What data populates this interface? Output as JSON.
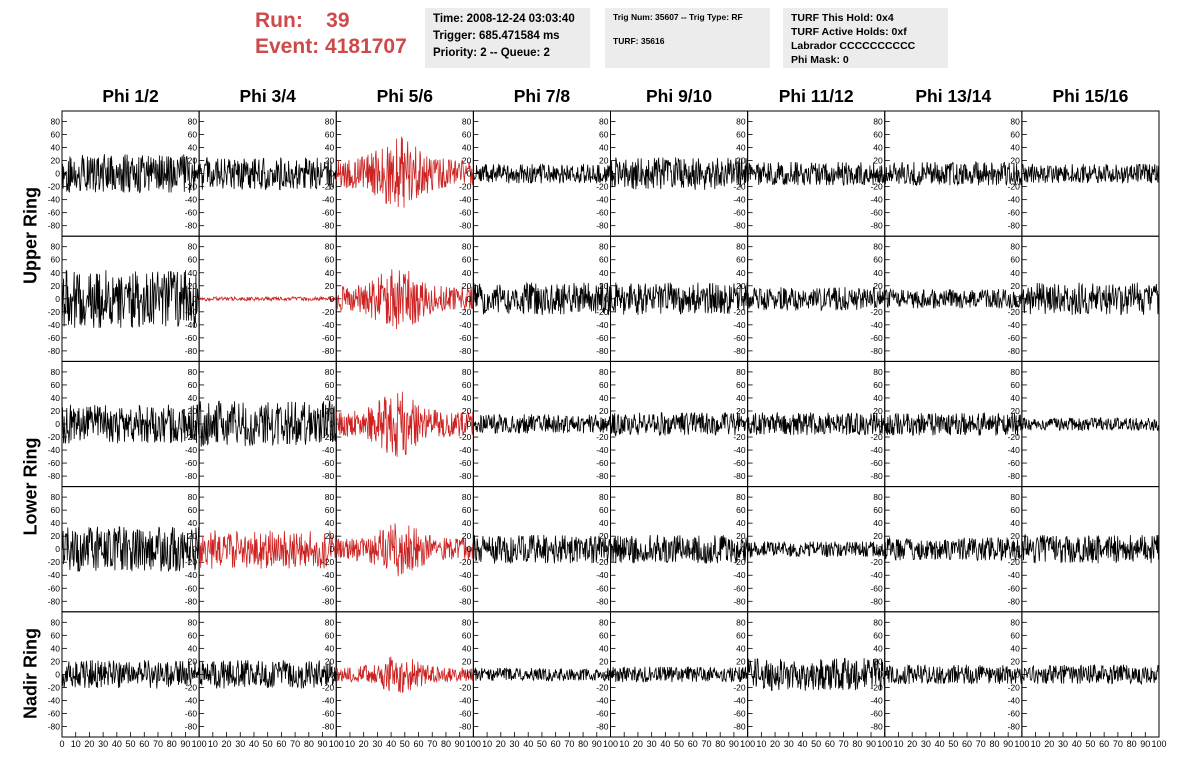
{
  "header": {
    "run_label": "Run:",
    "run_value": "39",
    "event_label": "Event:",
    "event_value": "4181707"
  },
  "info_boxes": [
    {
      "lines": [
        "Time: 2008-12-24 03:03:40",
        "Trigger: 685.471584 ms",
        "Priority: 2 -- Queue: 2"
      ]
    },
    {
      "lines": [
        "Trig Num: 35607 -- Trig Type: RF",
        "",
        "TURF: 35616"
      ]
    },
    {
      "lines": [
        "TURF This Hold: 0x4",
        "TURF Active Holds: 0xf",
        "Labrador CCCCCCCCCC",
        "Phi Mask: 0"
      ]
    }
  ],
  "columns": [
    "Phi 1/2",
    "Phi 3/4",
    "Phi 5/6",
    "Phi 7/8",
    "Phi 9/10",
    "Phi 11/12",
    "Phi 13/14",
    "Phi 15/16"
  ],
  "rows": [
    "Upper Ring",
    "Upper Ring",
    "Lower Ring",
    "Lower Ring",
    "Nadir Ring"
  ],
  "row_labels": [
    "Upper Ring",
    "Lower Ring",
    "Nadir Ring"
  ],
  "colors": {
    "trace": "#000000",
    "highlight": "#cc2222",
    "header_text": "#cd4a4a",
    "info_bg": "#ececec"
  },
  "chart_data": {
    "type": "line",
    "title": "",
    "xlabel": "",
    "ylabel": "",
    "xlim": [
      0,
      100
    ],
    "ylim": [
      -90,
      90
    ],
    "x_ticks": [
      0,
      10,
      20,
      30,
      40,
      50,
      60,
      70,
      80,
      90,
      100
    ],
    "y_ticks": [
      -80,
      -60,
      -40,
      -20,
      0,
      20,
      40,
      60,
      80
    ],
    "grid": false,
    "description_of_panels": "8 x 5 grid of waveform panels; each panel is one antenna trace",
    "panels": [
      {
        "row": 0,
        "col": 0,
        "amplitude": 30,
        "highlight": false
      },
      {
        "row": 0,
        "col": 1,
        "amplitude": 25,
        "highlight": false
      },
      {
        "row": 0,
        "col": 2,
        "amplitude": 40,
        "highlight": true
      },
      {
        "row": 0,
        "col": 3,
        "amplitude": 15,
        "highlight": false
      },
      {
        "row": 0,
        "col": 4,
        "amplitude": 25,
        "highlight": false
      },
      {
        "row": 0,
        "col": 5,
        "amplitude": 18,
        "highlight": false
      },
      {
        "row": 0,
        "col": 6,
        "amplitude": 18,
        "highlight": false
      },
      {
        "row": 0,
        "col": 7,
        "amplitude": 15,
        "highlight": false
      },
      {
        "row": 1,
        "col": 0,
        "amplitude": 45,
        "highlight": false
      },
      {
        "row": 1,
        "col": 1,
        "amplitude": 3,
        "highlight": true
      },
      {
        "row": 1,
        "col": 2,
        "amplitude": 35,
        "highlight": true
      },
      {
        "row": 1,
        "col": 3,
        "amplitude": 25,
        "highlight": false
      },
      {
        "row": 1,
        "col": 4,
        "amplitude": 25,
        "highlight": false
      },
      {
        "row": 1,
        "col": 5,
        "amplitude": 18,
        "highlight": false
      },
      {
        "row": 1,
        "col": 6,
        "amplitude": 15,
        "highlight": false
      },
      {
        "row": 1,
        "col": 7,
        "amplitude": 25,
        "highlight": false
      },
      {
        "row": 2,
        "col": 0,
        "amplitude": 30,
        "highlight": false
      },
      {
        "row": 2,
        "col": 1,
        "amplitude": 35,
        "highlight": false
      },
      {
        "row": 2,
        "col": 2,
        "amplitude": 35,
        "highlight": true
      },
      {
        "row": 2,
        "col": 3,
        "amplitude": 15,
        "highlight": false
      },
      {
        "row": 2,
        "col": 4,
        "amplitude": 18,
        "highlight": false
      },
      {
        "row": 2,
        "col": 5,
        "amplitude": 18,
        "highlight": false
      },
      {
        "row": 2,
        "col": 6,
        "amplitude": 18,
        "highlight": false
      },
      {
        "row": 2,
        "col": 7,
        "amplitude": 10,
        "highlight": false
      },
      {
        "row": 3,
        "col": 0,
        "amplitude": 35,
        "highlight": false
      },
      {
        "row": 3,
        "col": 1,
        "amplitude": 30,
        "highlight": true
      },
      {
        "row": 3,
        "col": 2,
        "amplitude": 30,
        "highlight": true
      },
      {
        "row": 3,
        "col": 3,
        "amplitude": 22,
        "highlight": false
      },
      {
        "row": 3,
        "col": 4,
        "amplitude": 22,
        "highlight": false
      },
      {
        "row": 3,
        "col": 5,
        "amplitude": 12,
        "highlight": false
      },
      {
        "row": 3,
        "col": 6,
        "amplitude": 18,
        "highlight": false
      },
      {
        "row": 3,
        "col": 7,
        "amplitude": 22,
        "highlight": false
      },
      {
        "row": 4,
        "col": 0,
        "amplitude": 22,
        "highlight": false
      },
      {
        "row": 4,
        "col": 1,
        "amplitude": 22,
        "highlight": false
      },
      {
        "row": 4,
        "col": 2,
        "amplitude": 20,
        "highlight": true
      },
      {
        "row": 4,
        "col": 3,
        "amplitude": 10,
        "highlight": false
      },
      {
        "row": 4,
        "col": 4,
        "amplitude": 12,
        "highlight": false
      },
      {
        "row": 4,
        "col": 5,
        "amplitude": 25,
        "highlight": false
      },
      {
        "row": 4,
        "col": 6,
        "amplitude": 15,
        "highlight": false
      },
      {
        "row": 4,
        "col": 7,
        "amplitude": 15,
        "highlight": false
      }
    ]
  }
}
